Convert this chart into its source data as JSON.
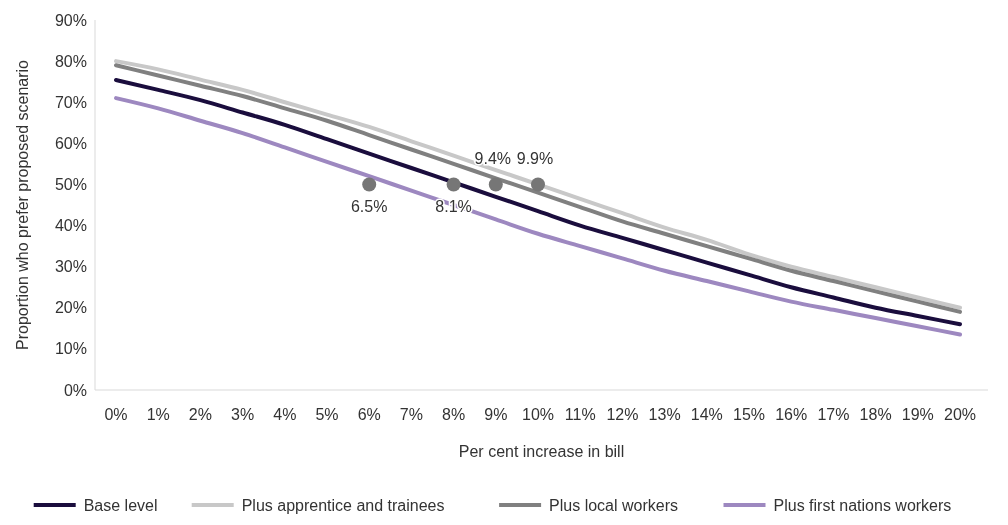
{
  "chart_data": {
    "type": "line",
    "xlabel": "Per cent increase in bill",
    "ylabel": "Proportion who prefer proposed scenario",
    "categories": [
      "0%",
      "1%",
      "2%",
      "3%",
      "4%",
      "5%",
      "6%",
      "7%",
      "8%",
      "9%",
      "10%",
      "11%",
      "12%",
      "13%",
      "14%",
      "15%",
      "16%",
      "17%",
      "18%",
      "19%",
      "20%"
    ],
    "ylim": [
      0,
      90
    ],
    "yticks": [
      {
        "value": 0,
        "label": "0%"
      },
      {
        "value": 10,
        "label": "10%"
      },
      {
        "value": 20,
        "label": "20%"
      },
      {
        "value": 30,
        "label": "30%"
      },
      {
        "value": 40,
        "label": "40%"
      },
      {
        "value": 50,
        "label": "50%"
      },
      {
        "value": 60,
        "label": "60%"
      },
      {
        "value": 70,
        "label": "70%"
      },
      {
        "value": 80,
        "label": "80%"
      },
      {
        "value": 90,
        "label": "90%"
      }
    ],
    "legend": "bottom",
    "annotations": [
      {
        "text": "6.5%",
        "x": "6%",
        "y": 50
      },
      {
        "text": "8.1%",
        "x": "8%",
        "y": 50
      },
      {
        "text": "9.4%",
        "x": "9%",
        "y": 50
      },
      {
        "text": "9.9%",
        "x": "10%",
        "y": 50
      }
    ],
    "series": [
      {
        "name": "Base level",
        "color": "#1a0d3d",
        "values": [
          75.4,
          73,
          70.5,
          67.5,
          64.5,
          61,
          57.5,
          54,
          50.5,
          47,
          43.5,
          40,
          37,
          34,
          31,
          28,
          25,
          22.5,
          20,
          18,
          16
        ]
      },
      {
        "name": "Plus apprentice and trainees",
        "color": "#c8c8c8",
        "values": [
          80,
          78,
          75.5,
          73,
          70,
          67,
          64,
          60.5,
          57,
          53.5,
          50,
          46.5,
          43,
          39.5,
          36.5,
          33,
          30,
          27.5,
          25,
          22.5,
          20
        ]
      },
      {
        "name": "Plus local workers",
        "color": "#808080",
        "values": [
          79,
          76.5,
          74,
          71.5,
          68.5,
          65.5,
          62,
          58.5,
          55,
          51.5,
          48,
          44.5,
          41,
          38,
          35,
          32,
          29,
          26.5,
          24,
          21.5,
          19
        ]
      },
      {
        "name": "Plus first nations workers",
        "color": "#9d88c0",
        "values": [
          71,
          68.5,
          65.5,
          62.5,
          59,
          55.5,
          52,
          48.5,
          45,
          41.5,
          38,
          35,
          32,
          29,
          26.5,
          24,
          21.5,
          19.5,
          17.5,
          15.5,
          13.5
        ]
      },
      {
        "type": "scatter",
        "color": "#767676",
        "x": [
          "6%",
          "8%",
          "9%",
          "10%"
        ],
        "values": [
          50,
          50,
          50,
          50
        ]
      }
    ]
  }
}
